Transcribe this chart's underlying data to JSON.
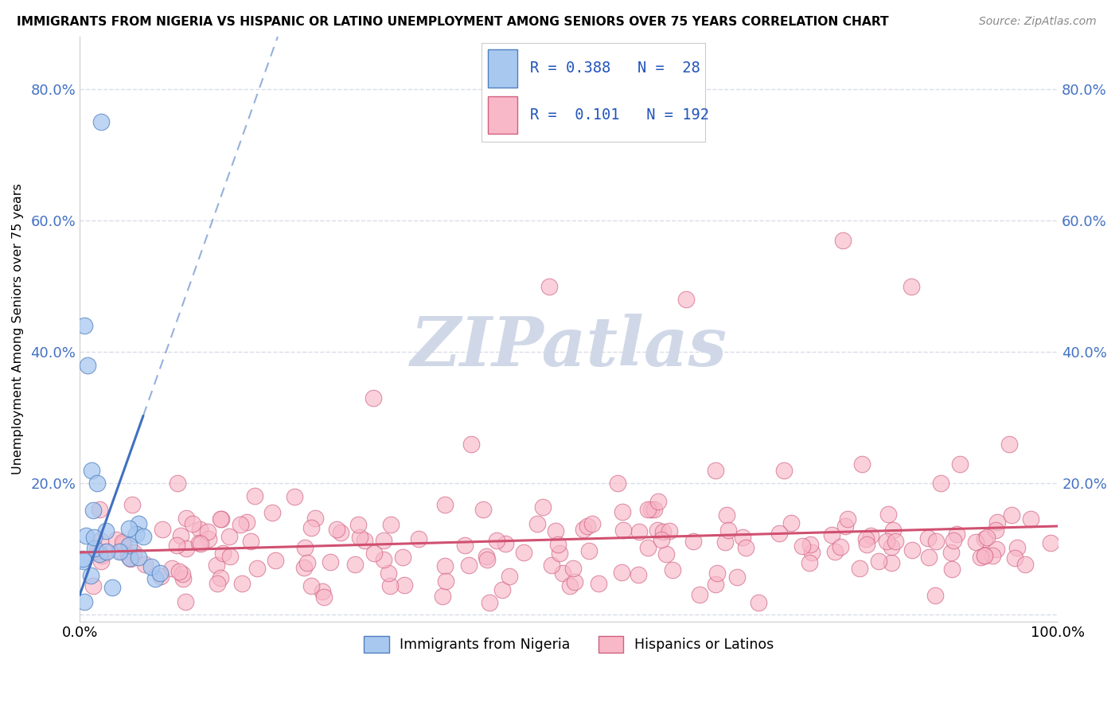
{
  "title": "IMMIGRANTS FROM NIGERIA VS HISPANIC OR LATINO UNEMPLOYMENT AMONG SENIORS OVER 75 YEARS CORRELATION CHART",
  "source": "Source: ZipAtlas.com",
  "ylabel": "Unemployment Among Seniors over 75 years",
  "yticks": [
    0.0,
    0.2,
    0.4,
    0.6,
    0.8
  ],
  "ytick_labels": [
    "",
    "20.0%",
    "40.0%",
    "60.0%",
    "80.0%"
  ],
  "xlim": [
    0.0,
    1.0
  ],
  "ylim": [
    -0.01,
    0.88
  ],
  "legend_R_blue": "R = 0.388",
  "legend_N_blue": "N =  28",
  "legend_R_pink": "R =  0.101",
  "legend_N_pink": "N = 192",
  "legend_label_blue": "Immigrants from Nigeria",
  "legend_label_pink": "Hispanics or Latinos",
  "blue_fill": "#a8c8f0",
  "pink_fill": "#f8b8c8",
  "blue_edge": "#5080c0",
  "pink_edge": "#d06080",
  "blue_line": "#4070c0",
  "pink_line": "#d05070",
  "watermark_color": "#d0d8e8",
  "watermark": "ZIPatlas",
  "grid_color": "#d8dde8"
}
